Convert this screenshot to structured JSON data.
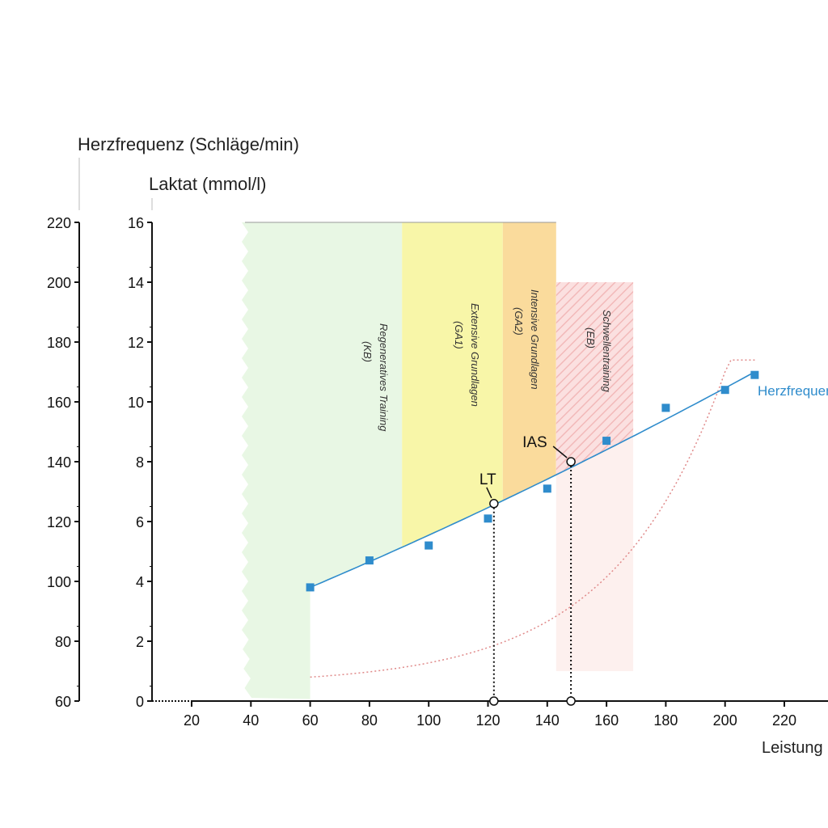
{
  "chart_data": {
    "type": "line",
    "title": "",
    "xlabel": "Leistung",
    "ylabel_left_outer": "Herzfrequenz (Schläge/min)",
    "ylabel_left_inner": "Laktat (mmol/l)",
    "xlim": [
      0,
      240
    ],
    "hr_ylim": [
      60,
      220
    ],
    "lactate_ylim": [
      0,
      16
    ],
    "x_ticks": [
      20,
      40,
      60,
      80,
      100,
      120,
      140,
      160,
      180,
      200,
      220
    ],
    "hr_ticks": [
      60,
      80,
      100,
      120,
      140,
      160,
      180,
      200,
      220
    ],
    "lactate_ticks": [
      0,
      2,
      4,
      6,
      8,
      10,
      12,
      14,
      16
    ],
    "grid": false,
    "series": [
      {
        "name": "Herzfrequenz",
        "color": "#2f8ccc",
        "x": [
          60,
          80,
          100,
          120,
          140,
          160,
          180,
          200,
          210
        ],
        "values": [
          98,
          107,
          112,
          121,
          131,
          147,
          158,
          164,
          169
        ]
      },
      {
        "name": "Laktat",
        "color": "#e08a8a",
        "style": "dotted",
        "x": [
          60,
          90,
          120,
          150,
          180,
          210
        ],
        "values": [
          0.8,
          1.0,
          1.7,
          3.6,
          6.8,
          11.2
        ]
      }
    ],
    "markers": [
      {
        "label": "LT",
        "x": 122,
        "hr": 126
      },
      {
        "label": "IAS",
        "x": 148,
        "hr": 140
      }
    ],
    "zones": [
      {
        "label": "Regeneratives Training",
        "abbr": "(KB)",
        "from": 38,
        "to": 91,
        "color": "#e8f7e4"
      },
      {
        "label": "Extensive Grundlagen",
        "abbr": "(GA1)",
        "from": 91,
        "to": 125,
        "color": "#f8f6a8"
      },
      {
        "label": "Intensive Grundlagen",
        "abbr": "(GA2)",
        "from": 125,
        "to": 143,
        "color": "#fadb9c"
      },
      {
        "label": "Schwellentraining",
        "abbr": "(EB)",
        "from": 143,
        "to": 169,
        "color": "#fbdede"
      }
    ]
  }
}
